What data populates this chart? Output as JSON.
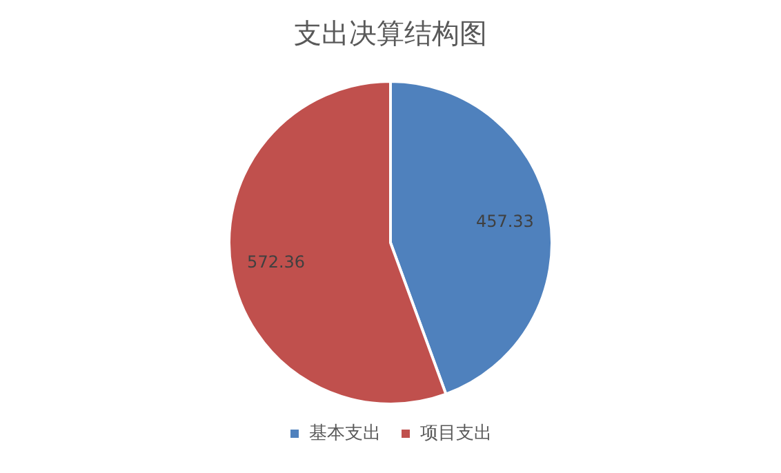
{
  "chart_data": {
    "type": "pie",
    "title": "支出决算结构图",
    "categories": [
      "基本支出",
      "项目支出"
    ],
    "values": [
      457.33,
      572.36
    ],
    "colors": [
      "#4f81bd",
      "#c0504d"
    ],
    "data_labels": true,
    "legend": "bottom"
  }
}
